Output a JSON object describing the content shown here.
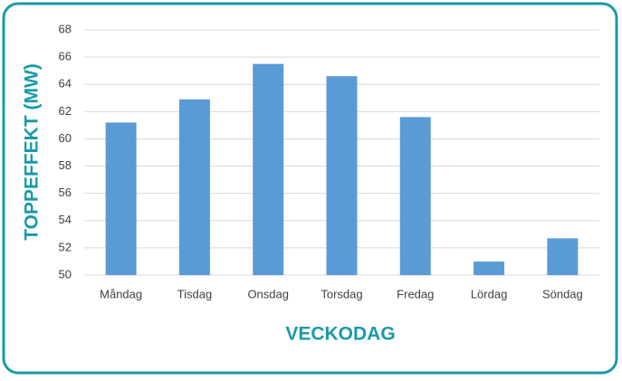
{
  "chart_data": {
    "type": "bar",
    "x_label": "VECKODAG",
    "y_label": "TOPPEFFEKT (MW)",
    "categories": [
      "Måndag",
      "Tisdag",
      "Onsdag",
      "Torsdag",
      "Fredag",
      "Lördag",
      "Söndag"
    ],
    "values": [
      61.2,
      62.9,
      65.5,
      64.6,
      61.6,
      51.0,
      52.7
    ],
    "color": "#5b9bd5",
    "ylim": [
      50,
      68
    ],
    "yticks": [
      50,
      52,
      54,
      56,
      58,
      60,
      62,
      64,
      66,
      68
    ],
    "grid": true
  }
}
